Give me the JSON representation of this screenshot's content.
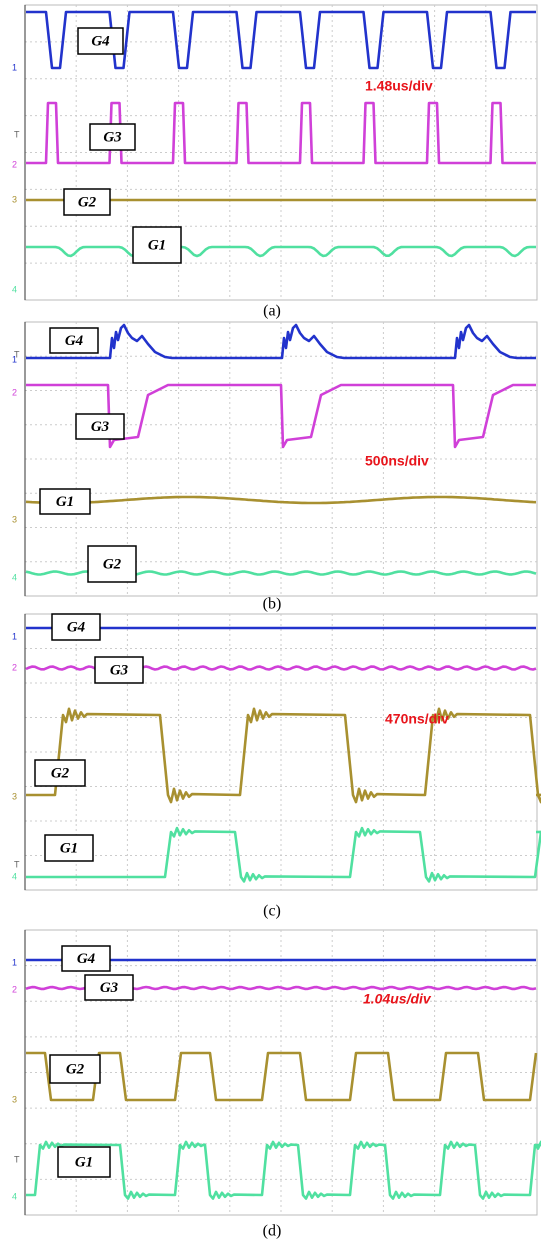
{
  "panels": [
    {
      "caption": "(a)",
      "timescale": "1.48us/div",
      "labels": [
        "G4",
        "G3",
        "G2",
        "G1"
      ],
      "channels": [
        "1",
        "2",
        "3",
        "4"
      ],
      "trigger": "T"
    },
    {
      "caption": "(b)",
      "timescale": "500ns/div",
      "labels": [
        "G4",
        "G3",
        "G1",
        "G2"
      ],
      "channels": [
        "1",
        "2",
        "3",
        "4"
      ],
      "trigger": "T"
    },
    {
      "caption": "(c)",
      "timescale": "470ns/div",
      "labels": [
        "G4",
        "G3",
        "G2",
        "G1"
      ],
      "channels": [
        "1",
        "2",
        "3",
        "4"
      ],
      "trigger": "T"
    },
    {
      "caption": "(d)",
      "timescale": "1.04us/div",
      "labels": [
        "G4",
        "G3",
        "G2",
        "G1"
      ],
      "channels": [
        "1",
        "2",
        "3",
        "4"
      ],
      "trigger": "T"
    }
  ]
}
